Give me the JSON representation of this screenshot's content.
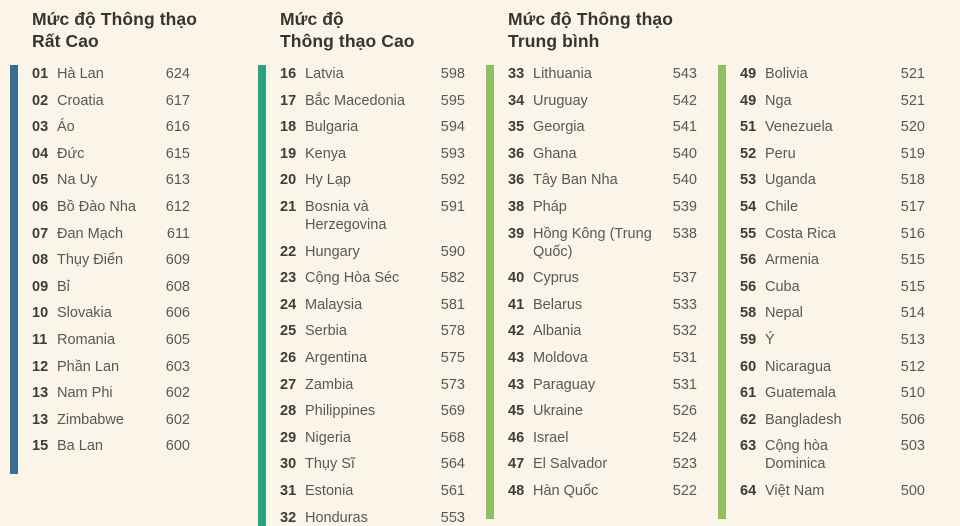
{
  "colors": {
    "background": "#fbf4e8",
    "very_high_band": "#3a6d94",
    "high_band": "#2ca17d",
    "moderate_band": "#91bf63",
    "header_text": "#3a342e",
    "rank_text": "#3f3b38",
    "body_text": "#585858"
  },
  "chart_data": {
    "type": "table",
    "title": "",
    "columns": [
      {
        "id": "very-high",
        "header": "Mức độ Thông thạo\nRất Cao",
        "bar_color": "#3a6d94",
        "rows": [
          {
            "rank": "01",
            "country": "Hà Lan",
            "score": 624
          },
          {
            "rank": "02",
            "country": "Croatia",
            "score": 617
          },
          {
            "rank": "03",
            "country": "Áo",
            "score": 616
          },
          {
            "rank": "04",
            "country": "Đức",
            "score": 615
          },
          {
            "rank": "05",
            "country": "Na Uy",
            "score": 613
          },
          {
            "rank": "06",
            "country": "Bồ Đào Nha",
            "score": 612
          },
          {
            "rank": "07",
            "country": "Đan Mạch",
            "score": 611
          },
          {
            "rank": "08",
            "country": "Thụy Điển",
            "score": 609
          },
          {
            "rank": "09",
            "country": "Bỉ",
            "score": 608
          },
          {
            "rank": "10",
            "country": "Slovakia",
            "score": 606
          },
          {
            "rank": "11",
            "country": "Romania",
            "score": 605
          },
          {
            "rank": "12",
            "country": "Phần Lan",
            "score": 603
          },
          {
            "rank": "13",
            "country": "Nam Phi",
            "score": 602
          },
          {
            "rank": "13",
            "country": "Zimbabwe",
            "score": 602
          },
          {
            "rank": "15",
            "country": "Ba Lan",
            "score": 600
          }
        ]
      },
      {
        "id": "high",
        "header": "Mức độ\nThông thạo Cao",
        "bar_color": "#2ca17d",
        "rows": [
          {
            "rank": "16",
            "country": "Latvia",
            "score": 598
          },
          {
            "rank": "17",
            "country": "Bắc Macedonia",
            "score": 595
          },
          {
            "rank": "18",
            "country": "Bulgaria",
            "score": 594
          },
          {
            "rank": "19",
            "country": "Kenya",
            "score": 593
          },
          {
            "rank": "20",
            "country": "Hy Lạp",
            "score": 592
          },
          {
            "rank": "21",
            "country": "Bosnia và Herzegovina",
            "score": 591
          },
          {
            "rank": "22",
            "country": "Hungary",
            "score": 590
          },
          {
            "rank": "23",
            "country": "Cộng Hòa Séc",
            "score": 582
          },
          {
            "rank": "24",
            "country": "Malaysia",
            "score": 581
          },
          {
            "rank": "25",
            "country": "Serbia",
            "score": 578
          },
          {
            "rank": "26",
            "country": "Argentina",
            "score": 575
          },
          {
            "rank": "27",
            "country": "Zambia",
            "score": 573
          },
          {
            "rank": "28",
            "country": "Philippines",
            "score": 569
          },
          {
            "rank": "29",
            "country": "Nigeria",
            "score": 568
          },
          {
            "rank": "30",
            "country": "Thụy Sĩ",
            "score": 564
          },
          {
            "rank": "31",
            "country": "Estonia",
            "score": 561
          },
          {
            "rank": "32",
            "country": "Honduras",
            "score": 553
          }
        ]
      },
      {
        "id": "moderate",
        "header": "Mức độ Thông thạo\nTrung bình",
        "bar_color": "#91bf63",
        "rows": [
          {
            "rank": "33",
            "country": "Lithuania",
            "score": 543
          },
          {
            "rank": "34",
            "country": "Uruguay",
            "score": 542
          },
          {
            "rank": "35",
            "country": "Georgia",
            "score": 541
          },
          {
            "rank": "36",
            "country": "Ghana",
            "score": 540
          },
          {
            "rank": "36",
            "country": "Tây Ban Nha",
            "score": 540
          },
          {
            "rank": "38",
            "country": "Pháp",
            "score": 539
          },
          {
            "rank": "39",
            "country": "Hồng Kông (Trung Quốc)",
            "score": 538
          },
          {
            "rank": "40",
            "country": "Cyprus",
            "score": 537
          },
          {
            "rank": "41",
            "country": "Belarus",
            "score": 533
          },
          {
            "rank": "42",
            "country": "Albania",
            "score": 532
          },
          {
            "rank": "43",
            "country": "Moldova",
            "score": 531
          },
          {
            "rank": "43",
            "country": "Paraguay",
            "score": 531
          },
          {
            "rank": "45",
            "country": "Ukraine",
            "score": 526
          },
          {
            "rank": "46",
            "country": "Israel",
            "score": 524
          },
          {
            "rank": "47",
            "country": "El Salvador",
            "score": 523
          },
          {
            "rank": "48",
            "country": "Hàn Quốc",
            "score": 522
          }
        ]
      },
      {
        "id": "moderate-continued",
        "header": "",
        "bar_color": "#91bf63",
        "rows": [
          {
            "rank": "49",
            "country": "Bolivia",
            "score": 521
          },
          {
            "rank": "49",
            "country": "Nga",
            "score": 521
          },
          {
            "rank": "51",
            "country": "Venezuela",
            "score": 520
          },
          {
            "rank": "52",
            "country": "Peru",
            "score": 519
          },
          {
            "rank": "53",
            "country": "Uganda",
            "score": 518
          },
          {
            "rank": "54",
            "country": "Chile",
            "score": 517
          },
          {
            "rank": "55",
            "country": "Costa Rica",
            "score": 516
          },
          {
            "rank": "56",
            "country": "Armenia",
            "score": 515
          },
          {
            "rank": "56",
            "country": "Cuba",
            "score": 515
          },
          {
            "rank": "58",
            "country": "Nepal",
            "score": 514
          },
          {
            "rank": "59",
            "country": "Ý",
            "score": 513
          },
          {
            "rank": "60",
            "country": "Nicaragua",
            "score": 512
          },
          {
            "rank": "61",
            "country": "Guatemala",
            "score": 510
          },
          {
            "rank": "62",
            "country": "Bangladesh",
            "score": 506
          },
          {
            "rank": "63",
            "country": "Cộng hòa Dominica",
            "score": 503
          },
          {
            "rank": "64",
            "country": "Việt Nam",
            "score": 500
          }
        ]
      }
    ]
  }
}
